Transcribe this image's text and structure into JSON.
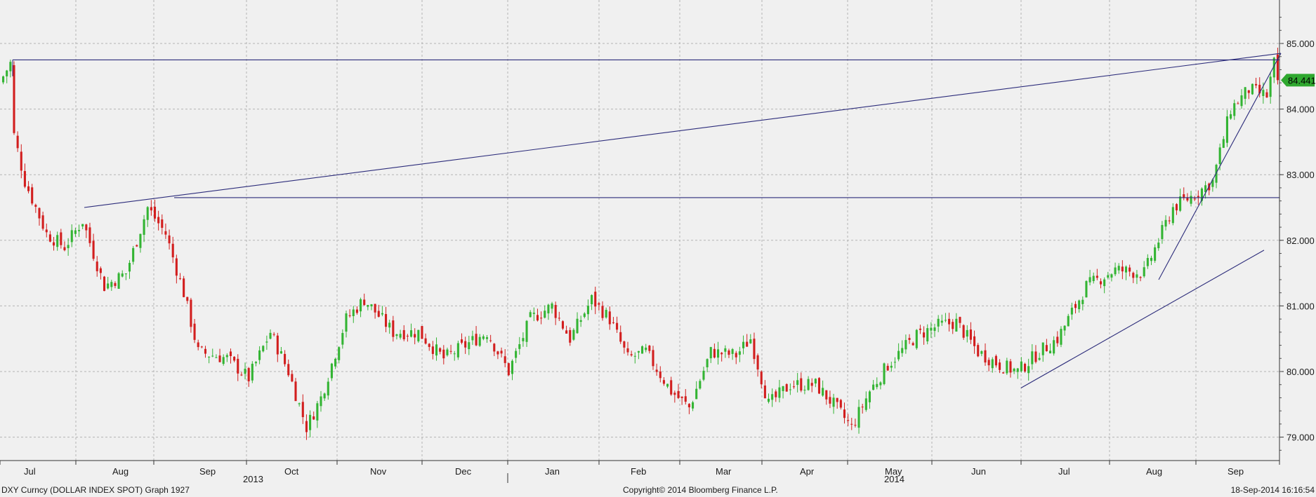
{
  "footer": {
    "left": "DXY Curncy (DOLLAR INDEX SPOT) Graph 1927",
    "center": "Copyright© 2014 Bloomberg Finance L.P.",
    "right": "18-Sep-2014 16:16:54"
  },
  "colors": {
    "background": "#f0f0f0",
    "grid": "#b4b4b4",
    "up": "#33b433",
    "down": "#d21e1e",
    "trendline": "#2b2b7a",
    "last_price_badge": "#2fa82f"
  },
  "chart_data": {
    "type": "candlestick",
    "title": "",
    "ylim": [
      78.6,
      85.6
    ],
    "y_ticks": [
      "79.000",
      "80.000",
      "81.000",
      "82.000",
      "83.000",
      "84.000",
      "85.000"
    ],
    "y_tick_values": [
      79,
      80,
      81,
      82,
      83,
      84,
      85
    ],
    "grid": true,
    "last_price": "84.441",
    "x_axis": {
      "months": [
        "Jul",
        "Aug",
        "Sep",
        "Oct",
        "Nov",
        "Dec",
        "Jan",
        "Feb",
        "Mar",
        "Apr",
        "May",
        "Jun",
        "Jul",
        "Aug",
        "Sep"
      ],
      "years": [
        "2013",
        "2014"
      ]
    },
    "series": [
      {
        "name": "",
        "close_anchors": [
          [
            0,
            84.5
          ],
          [
            2,
            84.7
          ],
          [
            3,
            83.6
          ],
          [
            6,
            82.9
          ],
          [
            12,
            82.1
          ],
          [
            17,
            81.9
          ],
          [
            22,
            82.3
          ],
          [
            28,
            81.3
          ],
          [
            34,
            81.5
          ],
          [
            40,
            82.5
          ],
          [
            45,
            82.1
          ],
          [
            50,
            81.2
          ],
          [
            54,
            80.3
          ],
          [
            62,
            80.2
          ],
          [
            68,
            79.9
          ],
          [
            74,
            80.6
          ],
          [
            79,
            80.0
          ],
          [
            84,
            79.15
          ],
          [
            88,
            79.6
          ],
          [
            95,
            80.8
          ],
          [
            100,
            81.1
          ],
          [
            108,
            80.6
          ],
          [
            115,
            80.6
          ],
          [
            122,
            80.2
          ],
          [
            128,
            80.4
          ],
          [
            134,
            80.6
          ],
          [
            140,
            80.0
          ],
          [
            146,
            80.8
          ],
          [
            152,
            81.0
          ],
          [
            157,
            80.5
          ],
          [
            163,
            81.1
          ],
          [
            168,
            80.8
          ],
          [
            173,
            80.2
          ],
          [
            178,
            80.3
          ],
          [
            185,
            79.7
          ],
          [
            190,
            79.45
          ],
          [
            196,
            80.3
          ],
          [
            203,
            80.25
          ],
          [
            207,
            80.5
          ],
          [
            212,
            79.5
          ],
          [
            218,
            79.8
          ],
          [
            225,
            79.8
          ],
          [
            230,
            79.5
          ],
          [
            235,
            79.15
          ],
          [
            240,
            79.7
          ],
          [
            245,
            80.1
          ],
          [
            253,
            80.55
          ],
          [
            259,
            80.7
          ],
          [
            264,
            80.75
          ],
          [
            270,
            80.3
          ],
          [
            276,
            80.1
          ],
          [
            281,
            80.0
          ],
          [
            287,
            80.3
          ],
          [
            292,
            80.5
          ],
          [
            300,
            81.3
          ],
          [
            308,
            81.55
          ],
          [
            316,
            81.5
          ],
          [
            324,
            82.5
          ],
          [
            330,
            82.7
          ],
          [
            335,
            82.9
          ],
          [
            340,
            84.0
          ],
          [
            345,
            84.3
          ],
          [
            350,
            84.2
          ],
          [
            352,
            84.7
          ],
          [
            353,
            84.441
          ]
        ]
      }
    ]
  }
}
